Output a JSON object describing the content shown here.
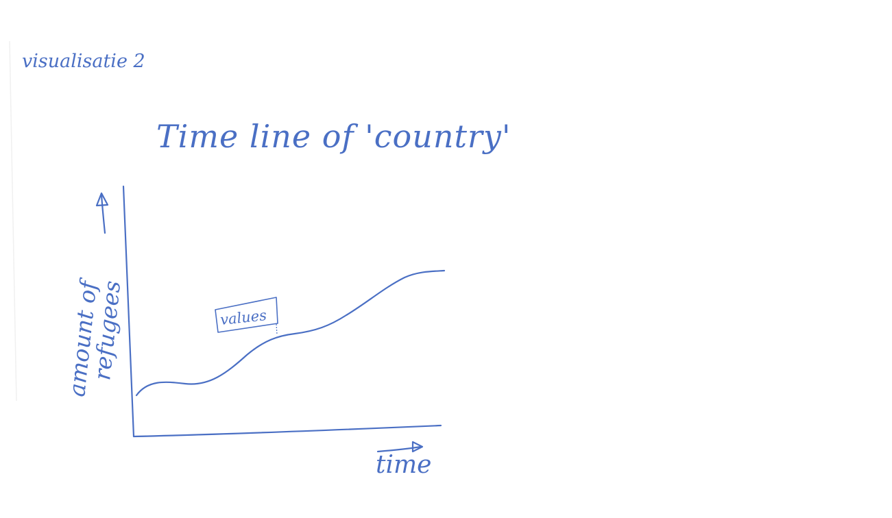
{
  "page": {
    "heading": "visualisatie 2",
    "ink_color": "#4a6fc4"
  },
  "sketch": {
    "title": "Time line of 'country'",
    "y_label_line1": "amount of",
    "y_label_line2": "refugees",
    "x_label": "time",
    "annotation": "values"
  }
}
